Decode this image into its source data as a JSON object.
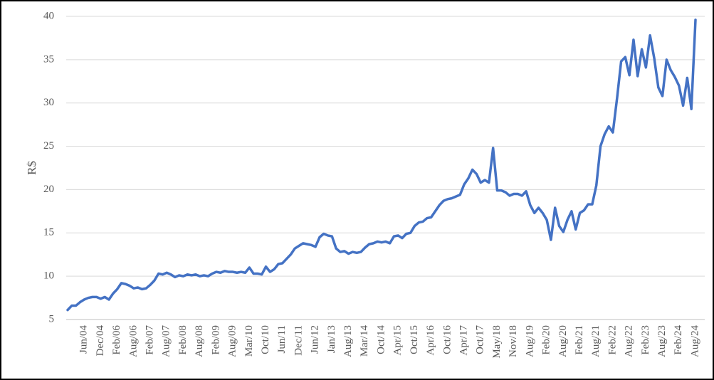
{
  "chart_data": {
    "type": "line",
    "y_label": "R$",
    "categories": [
      null,
      null,
      null,
      null,
      "Jun/04",
      null,
      null,
      null,
      "Dec/04",
      null,
      null,
      null,
      "Feb/06",
      null,
      null,
      null,
      "Aug/06",
      null,
      null,
      null,
      "Feb/07",
      null,
      null,
      null,
      "Aug/07",
      null,
      null,
      null,
      "Feb/08",
      null,
      null,
      null,
      "Aug/08",
      null,
      null,
      null,
      "Feb/09",
      null,
      null,
      null,
      "Aug/09",
      null,
      null,
      null,
      "Mar/10",
      null,
      null,
      null,
      "Oct/10",
      null,
      null,
      null,
      "Jun/11",
      null,
      null,
      null,
      "Dec/11",
      null,
      null,
      null,
      "Jun/12",
      null,
      null,
      null,
      "Jan/13",
      null,
      null,
      null,
      "Aug/13",
      null,
      null,
      null,
      "Mar/14",
      null,
      null,
      null,
      "Oct/14",
      null,
      null,
      null,
      "Apr/15",
      null,
      null,
      null,
      "Oct/15",
      null,
      null,
      null,
      "Apr/16",
      null,
      null,
      null,
      "Oct/16",
      null,
      null,
      null,
      "Apr/17",
      null,
      null,
      null,
      "Oct/17",
      null,
      null,
      null,
      "May/18",
      null,
      null,
      null,
      "Nov/18",
      null,
      null,
      null,
      "Aug/19",
      null,
      null,
      null,
      "Feb/20",
      null,
      null,
      null,
      "Aug/20",
      null,
      null,
      null,
      "Feb/21",
      null,
      null,
      null,
      "Aug/21",
      null,
      null,
      null,
      "Feb/22",
      null,
      null,
      null,
      "Aug/22",
      null,
      null,
      null,
      "Feb/23",
      null,
      null,
      null,
      "Aug/23",
      null,
      null,
      null,
      "Feb/24",
      null,
      null,
      null,
      "Aug/24"
    ],
    "series": [
      {
        "color": "#4472c4",
        "values": [
          6.1,
          6.6,
          6.6,
          7.0,
          7.3,
          7.5,
          7.6,
          7.6,
          7.4,
          7.6,
          7.3,
          8.0,
          8.5,
          9.2,
          9.1,
          8.9,
          8.6,
          8.7,
          8.5,
          8.6,
          9.0,
          9.5,
          10.3,
          10.2,
          10.4,
          10.2,
          9.9,
          10.1,
          10.0,
          10.2,
          10.1,
          10.2,
          10.0,
          10.1,
          10.0,
          10.3,
          10.5,
          10.4,
          10.6,
          10.5,
          10.5,
          10.4,
          10.5,
          10.4,
          11.0,
          10.3,
          10.3,
          10.2,
          11.1,
          10.5,
          10.8,
          11.4,
          11.5,
          12.0,
          12.5,
          13.2,
          13.5,
          13.8,
          13.7,
          13.6,
          13.4,
          14.5,
          14.9,
          14.7,
          14.6,
          13.2,
          12.8,
          12.9,
          12.6,
          12.8,
          12.7,
          12.8,
          13.3,
          13.7,
          13.8,
          14.0,
          13.9,
          14.0,
          13.8,
          14.6,
          14.7,
          14.4,
          14.9,
          15.0,
          15.8,
          16.2,
          16.3,
          16.7,
          16.8,
          17.5,
          18.2,
          18.7,
          18.9,
          19.0,
          19.2,
          19.4,
          20.6,
          21.3,
          22.3,
          21.8,
          20.8,
          21.1,
          20.8,
          24.8,
          19.9,
          19.9,
          19.7,
          19.3,
          19.5,
          19.5,
          19.3,
          19.8,
          18.2,
          17.3,
          17.9,
          17.3,
          16.5,
          14.2,
          17.9,
          15.8,
          15.1,
          16.5,
          17.5,
          15.4,
          17.3,
          17.6,
          18.3,
          18.3,
          20.5,
          25.0,
          26.4,
          27.3,
          26.6,
          30.5,
          34.8,
          35.3,
          33.2,
          37.3,
          33.1,
          36.2,
          34.1,
          37.8,
          35.2,
          31.8,
          30.8,
          35.0,
          33.8,
          33.0,
          32.0,
          29.7,
          32.9,
          29.3,
          39.6
        ]
      }
    ],
    "ylim": [
      5,
      40
    ],
    "yticks": [
      5,
      10,
      15,
      20,
      25,
      30,
      35,
      40
    ],
    "grid": true
  }
}
